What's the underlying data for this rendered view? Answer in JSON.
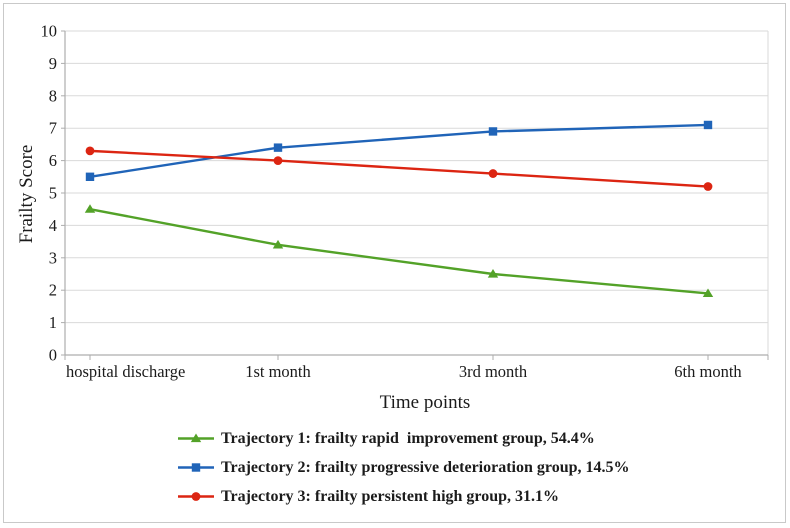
{
  "chart_data": {
    "type": "line",
    "title": "",
    "xlabel": "Time points",
    "ylabel": "Frailty Score",
    "categories": [
      "hospital discharge",
      "1st month",
      "3rd month",
      "6th month"
    ],
    "series": [
      {
        "name": "Trajectory 1: frailty rapid  improvement group, 54.4%",
        "marker": "triangle",
        "color": "#53A228",
        "values": [
          4.5,
          3.4,
          2.5,
          1.9
        ]
      },
      {
        "name": "Trajectory 2: frailty progressive deterioration group, 14.5%",
        "marker": "square",
        "color": "#2064B8",
        "values": [
          5.5,
          6.4,
          6.9,
          7.1
        ]
      },
      {
        "name": "Trajectory 3: frailty persistent high group, 31.1%",
        "marker": "circle",
        "color": "#DC2512",
        "values": [
          6.3,
          6.0,
          5.6,
          5.2
        ]
      }
    ],
    "ylim": [
      0,
      10
    ],
    "yticks": [
      0,
      1,
      2,
      3,
      4,
      5,
      6,
      7,
      8,
      9,
      10
    ],
    "grid": true,
    "legend_position": "bottom-left"
  }
}
